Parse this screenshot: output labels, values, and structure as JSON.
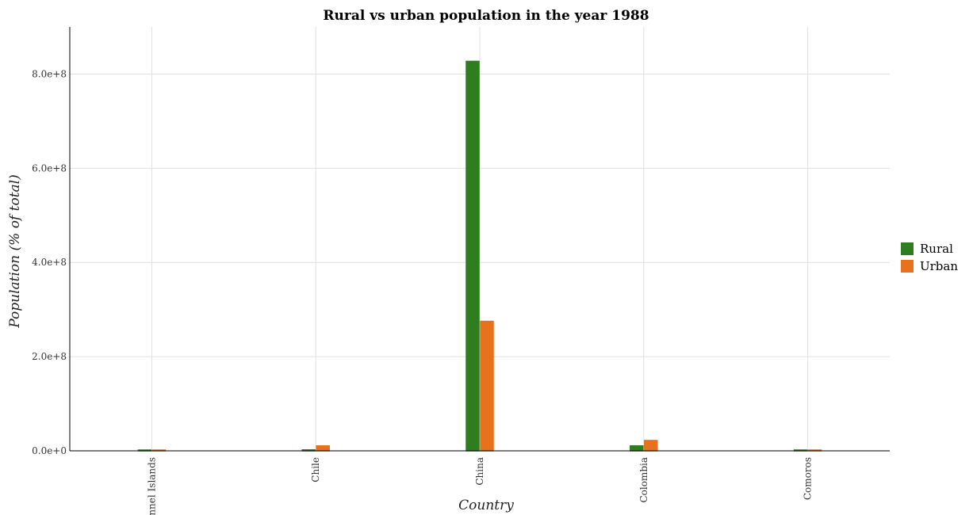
{
  "chart_data": {
    "type": "bar",
    "title": "Rural vs urban population in the year 1988",
    "xlabel": "Country",
    "ylabel": "Population (% of total)",
    "categories": [
      "Channel Islands",
      "Chile",
      "China",
      "Colombia",
      "Comoros"
    ],
    "series": [
      {
        "name": "Rural",
        "color": "#2e7d1f",
        "values": [
          100000,
          2000000,
          827000000,
          10500000,
          350000
        ]
      },
      {
        "name": "Urban",
        "color": "#e8711c",
        "values": [
          50000,
          10500000,
          275000000,
          22000000,
          110000
        ]
      }
    ],
    "ylim": [
      0,
      900000000
    ],
    "yticks": [
      0,
      200000000,
      400000000,
      600000000,
      800000000
    ],
    "ytick_labels": [
      "0.0e+0",
      "2.0e+8",
      "4.0e+8",
      "6.0e+8",
      "8.0e+8"
    ],
    "grid": true,
    "legend_position": "right"
  }
}
